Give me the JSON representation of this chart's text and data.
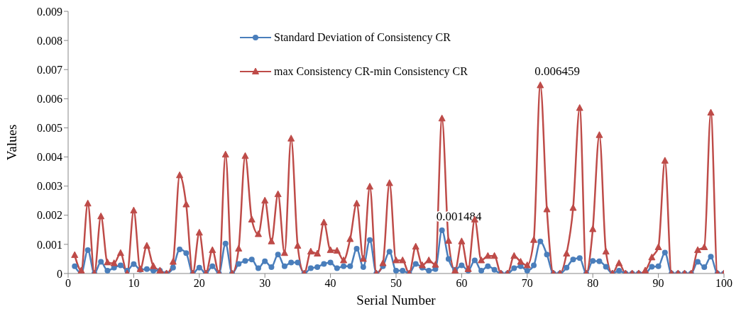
{
  "chart_data": {
    "type": "line",
    "xlabel": "Serial Number",
    "ylabel": "Values",
    "x": [
      1,
      2,
      3,
      4,
      5,
      6,
      7,
      8,
      9,
      10,
      11,
      12,
      13,
      14,
      15,
      16,
      17,
      18,
      19,
      20,
      21,
      22,
      23,
      24,
      25,
      26,
      27,
      28,
      29,
      30,
      31,
      32,
      33,
      34,
      35,
      36,
      37,
      38,
      39,
      40,
      41,
      42,
      43,
      44,
      45,
      46,
      47,
      48,
      49,
      50,
      51,
      52,
      53,
      54,
      55,
      56,
      57,
      58,
      59,
      60,
      61,
      62,
      63,
      64,
      65,
      66,
      67,
      68,
      69,
      70,
      71,
      72,
      73,
      74,
      75,
      76,
      77,
      78,
      79,
      80,
      81,
      82,
      83,
      84,
      85,
      86,
      87,
      88,
      89,
      90,
      91,
      92,
      93,
      94,
      95,
      96,
      97,
      98,
      99,
      100
    ],
    "series": [
      {
        "name": "Standard Deviation of Consistency CR",
        "color": "#4a7ebb",
        "marker": "circle",
        "values": [
          0.00025,
          0,
          0.0008,
          0,
          0.0004,
          0.0001,
          0.0002,
          0.00028,
          0.0001,
          0.00032,
          0.00013,
          0.00015,
          0.0001,
          0.0001,
          0,
          0.0002,
          0.00083,
          0.0007,
          0,
          0.0002,
          0,
          0.00025,
          0,
          0.00103,
          0,
          0.00033,
          0.00043,
          0.00048,
          0.00018,
          0.00042,
          0.00022,
          0.00065,
          0.00025,
          0.00038,
          0.00038,
          0,
          0.00018,
          0.00022,
          0.00033,
          0.00038,
          0.00018,
          0.00025,
          0.00025,
          0.00085,
          0.00022,
          0.00115,
          0,
          0.00025,
          0.00075,
          0.0001,
          0.0001,
          0,
          0.00033,
          0.0002,
          0.0001,
          0.00015,
          0.001484,
          0.0005,
          0.00013,
          0.00028,
          0.0001,
          0.00045,
          0.0001,
          0.00025,
          0.00013,
          0,
          0,
          0.00018,
          0.00025,
          0.0001,
          0.00028,
          0.0011,
          0.00065,
          0,
          0,
          0.0002,
          0.00048,
          0.00053,
          0,
          0.00043,
          0.00042,
          0.00023,
          0,
          0.0001,
          0,
          0,
          0,
          0,
          0.00023,
          0.00025,
          0.00072,
          0,
          0,
          0,
          0,
          0.0004,
          0.00022,
          0.00058,
          0,
          0
        ]
      },
      {
        "name": "max Consistency CR-min Consistency CR",
        "color": "#be4b48",
        "marker": "triangle",
        "values": [
          0.00063,
          0.0001,
          0.0024,
          0,
          0.00196,
          0.00038,
          0.00035,
          0.0007,
          0,
          0.00216,
          0.00015,
          0.00095,
          0.00025,
          0.0001,
          0,
          0.0004,
          0.00337,
          0.00237,
          0,
          0.0014,
          0,
          0.0008,
          0,
          0.00408,
          0,
          0.00085,
          0.00403,
          0.00185,
          0.00135,
          0.0025,
          0.0011,
          0.00272,
          0.0007,
          0.00463,
          0.00095,
          0,
          0.00075,
          0.00068,
          0.00175,
          0.0008,
          0.00078,
          0.00045,
          0.00118,
          0.0024,
          0.0005,
          0.00298,
          0,
          0.00035,
          0.0031,
          0.00045,
          0.00045,
          0,
          0.00092,
          0.00028,
          0.00045,
          0.0003,
          0.00532,
          0.00112,
          0.0001,
          0.0011,
          0.00015,
          0.00185,
          0.00045,
          0.0006,
          0.0006,
          0,
          0,
          0.0006,
          0.0004,
          0.00028,
          0.00115,
          0.006459,
          0.0022,
          0,
          0,
          0.00068,
          0.00225,
          0.00568,
          0,
          0.00152,
          0.00475,
          0.00075,
          0,
          0.00035,
          0,
          0,
          0,
          0.0001,
          0.00055,
          0.0009,
          0.00387,
          0,
          0,
          0,
          0,
          0.0008,
          0.0009,
          0.00552,
          0,
          0
        ]
      }
    ],
    "annotations": [
      {
        "text": "0.001484",
        "x": 57,
        "y": 0.001484
      },
      {
        "text": "0.006459",
        "x": 72,
        "y": 0.006459
      }
    ],
    "xlim": [
      0,
      100
    ],
    "xticks": [
      0,
      10,
      20,
      30,
      40,
      50,
      60,
      70,
      80,
      90,
      100
    ],
    "ylim": [
      0,
      0.009
    ],
    "yticks": [
      0,
      0.001,
      0.002,
      0.003,
      0.004,
      0.005,
      0.006,
      0.007,
      0.008,
      0.009
    ],
    "grid": false,
    "legend": "top",
    "line_style": "solid"
  }
}
